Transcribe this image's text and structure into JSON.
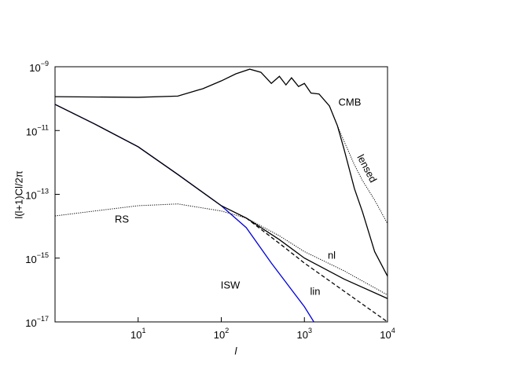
{
  "chart_data": {
    "type": "line",
    "xlabel": "l",
    "ylabel": "l(l+1)Cl/2π",
    "xlim": [
      1,
      10000
    ],
    "ylim": [
      1e-17,
      1e-09
    ],
    "xscale": "log",
    "yscale": "log",
    "xticks": [
      {
        "value": 10,
        "label": "10^1"
      },
      {
        "value": 100,
        "label": "10^2"
      },
      {
        "value": 1000,
        "label": "10^3"
      },
      {
        "value": 10000,
        "label": "10^4"
      }
    ],
    "yticks": [
      {
        "value": 1e-09,
        "label": "10^−9"
      },
      {
        "value": 1e-11,
        "label": "10^−11"
      },
      {
        "value": 1e-13,
        "label": "10^−13"
      },
      {
        "value": 1e-15,
        "label": "10^−15"
      },
      {
        "value": 1e-17,
        "label": "10^−17"
      }
    ],
    "annotations": [
      "CMB",
      "lensed",
      "RS",
      "nl",
      "ISW",
      "lin"
    ],
    "series": [
      {
        "color": "#000000",
        "style": "solid",
        "x": [
          1,
          10,
          30,
          60,
          100,
          150,
          220,
          300,
          400,
          500,
          600,
          700,
          850,
          1000,
          1200,
          1500,
          2000,
          2500,
          3000,
          4000,
          5000,
          7000,
          10000
        ],
        "values": [
          1.15e-10,
          1.1e-10,
          1.2e-10,
          2.05e-10,
          3.6e-10,
          6e-10,
          8.4e-10,
          6.7e-10,
          3e-10,
          5e-10,
          2.7e-10,
          4.5e-10,
          2.4e-10,
          3e-10,
          1.5e-10,
          1.4e-10,
          5.9e-11,
          1.4e-11,
          2.6e-12,
          1.5e-13,
          2.8e-14,
          1.6e-15,
          2.7e-16
        ]
      },
      {
        "color": "#000000",
        "style": "dotted",
        "x": [
          2000,
          2500,
          3000,
          4000,
          5000,
          7000,
          10000
        ],
        "values": [
          5.9e-11,
          1.4e-11,
          4.6e-12,
          8.4e-13,
          2.7e-13,
          6.6e-14,
          1.2e-14
        ]
      },
      {
        "color": "#0000dd",
        "style": "solid",
        "x": [
          1,
          3,
          10,
          30,
          100,
          200,
          400,
          1000,
          1300
        ],
        "values": [
          6.6e-11,
          1.6e-11,
          3.1e-12,
          4.2e-13,
          4.4e-14,
          9e-15,
          7e-16,
          3e-17,
          1e-17
        ]
      },
      {
        "color": "#000000",
        "style": "solid",
        "x": [
          1,
          3,
          10,
          30,
          100,
          200,
          500,
          1000,
          3000,
          10000
        ],
        "values": [
          6.6e-11,
          1.6e-11,
          3.1e-12,
          4.2e-13,
          4.4e-14,
          1.8e-14,
          3.8e-15,
          1e-15,
          2.2e-16,
          5.4e-17
        ]
      },
      {
        "color": "#000000",
        "style": "dashed",
        "x": [
          200,
          500,
          1000,
          3000,
          10000
        ],
        "values": [
          1.8e-14,
          2.9e-15,
          7e-16,
          9.2e-17,
          1e-17
        ]
      },
      {
        "color": "#000000",
        "style": "dotted",
        "x": [
          1,
          3,
          10,
          30,
          100,
          200,
          500,
          1000,
          3000,
          10000
        ],
        "values": [
          2.1e-14,
          3e-14,
          4.4e-14,
          5e-14,
          3e-14,
          1.8e-14,
          5e-15,
          1.6e-15,
          4e-16,
          7e-17
        ]
      }
    ]
  }
}
